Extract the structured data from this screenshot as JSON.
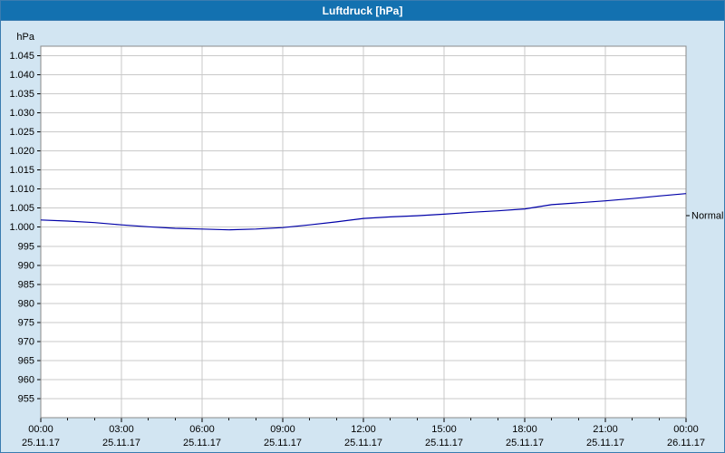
{
  "window": {
    "title": "Luftdruck [hPa]"
  },
  "colors": {
    "titlebar_bg": "#1371b0",
    "titlebar_text": "#ffffff",
    "window_bg": "#d2e5f2",
    "window_border": "#3a7cb0",
    "plot_bg": "#ffffff",
    "plot_border": "#8a8a8a",
    "grid": "#c9c9c9",
    "axis_text": "#000000",
    "line": "#0000a8"
  },
  "chart_data": {
    "type": "line",
    "title": "Luftdruck [hPa]",
    "y_unit": "hPa",
    "ylim": [
      950,
      1047.5
    ],
    "xlim_hours": [
      0,
      24
    ],
    "grid": true,
    "legend_position": "none",
    "y_ticks": [
      {
        "value": 1045,
        "label": "1.045"
      },
      {
        "value": 1040,
        "label": "1.040"
      },
      {
        "value": 1035,
        "label": "1.035"
      },
      {
        "value": 1030,
        "label": "1.030"
      },
      {
        "value": 1025,
        "label": "1.025"
      },
      {
        "value": 1020,
        "label": "1.020"
      },
      {
        "value": 1015,
        "label": "1.015"
      },
      {
        "value": 1010,
        "label": "1.010"
      },
      {
        "value": 1005,
        "label": "1.005"
      },
      {
        "value": 1000,
        "label": "1.000"
      },
      {
        "value": 995,
        "label": "995"
      },
      {
        "value": 990,
        "label": "990"
      },
      {
        "value": 985,
        "label": "985"
      },
      {
        "value": 980,
        "label": "980"
      },
      {
        "value": 975,
        "label": "975"
      },
      {
        "value": 970,
        "label": "970"
      },
      {
        "value": 965,
        "label": "965"
      },
      {
        "value": 960,
        "label": "960"
      },
      {
        "value": 955,
        "label": "955"
      }
    ],
    "x_ticks": [
      {
        "hour": 0,
        "time": "00:00",
        "date": "25.11.17"
      },
      {
        "hour": 3,
        "time": "03:00",
        "date": "25.11.17"
      },
      {
        "hour": 6,
        "time": "06:00",
        "date": "25.11.17"
      },
      {
        "hour": 9,
        "time": "09:00",
        "date": "25.11.17"
      },
      {
        "hour": 12,
        "time": "12:00",
        "date": "25.11.17"
      },
      {
        "hour": 15,
        "time": "15:00",
        "date": "25.11.17"
      },
      {
        "hour": 18,
        "time": "18:00",
        "date": "25.11.17"
      },
      {
        "hour": 21,
        "time": "21:00",
        "date": "25.11.17"
      },
      {
        "hour": 24,
        "time": "00:00",
        "date": "26.11.17"
      }
    ],
    "series": [
      {
        "name": "Luftdruck",
        "color": "#0000a8",
        "x_hours": [
          0,
          1,
          2,
          3,
          4,
          5,
          6,
          7,
          8,
          9,
          10,
          11,
          12,
          13,
          14,
          15,
          16,
          17,
          18,
          19,
          20,
          21,
          22,
          23,
          24
        ],
        "values": [
          1001.9,
          1001.6,
          1001.2,
          1000.6,
          1000.1,
          999.7,
          999.5,
          999.3,
          999.5,
          999.9,
          1000.6,
          1001.4,
          1002.3,
          1002.7,
          1003.0,
          1003.4,
          1003.9,
          1004.3,
          1004.8,
          1005.9,
          1006.4,
          1006.9,
          1007.5,
          1008.2,
          1008.8
        ]
      }
    ],
    "annotations": [
      {
        "label": "Normal",
        "value": 1003
      }
    ]
  }
}
